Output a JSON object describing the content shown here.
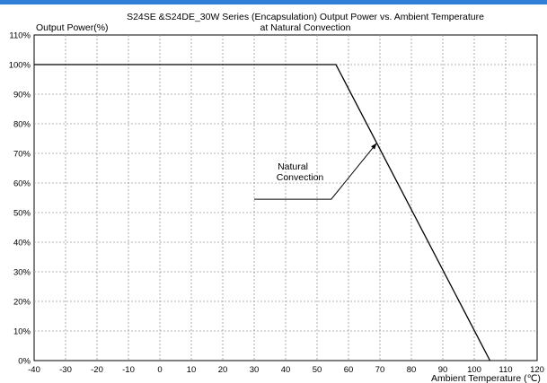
{
  "chart_data": {
    "type": "line",
    "title_line1": "S24SE &S24DE_30W Series (Encapsulation)  Output Power vs. Ambient Temperature",
    "title_line2": "at Natural Convection",
    "ylabel": "Output Power(%)",
    "xlabel": "Ambient Temperature (℃)",
    "xlim": [
      -40,
      120
    ],
    "ylim": [
      0,
      110
    ],
    "x_ticks": [
      -40,
      -30,
      -20,
      -10,
      0,
      10,
      20,
      30,
      40,
      50,
      60,
      70,
      80,
      90,
      100,
      110,
      120
    ],
    "y_ticks": [
      0,
      10,
      20,
      30,
      40,
      50,
      60,
      70,
      80,
      90,
      100,
      110
    ],
    "y_tick_suffix": "%",
    "grid": true,
    "series": [
      {
        "points": [
          [
            -40,
            100
          ],
          [
            56,
            100
          ],
          [
            105,
            0
          ]
        ]
      }
    ],
    "annotation": {
      "line1": "Natural",
      "line2": "Convection",
      "leader": [
        [
          30,
          54.5
        ],
        [
          54.5,
          54.5
        ],
        [
          69,
          73.5
        ]
      ]
    }
  }
}
